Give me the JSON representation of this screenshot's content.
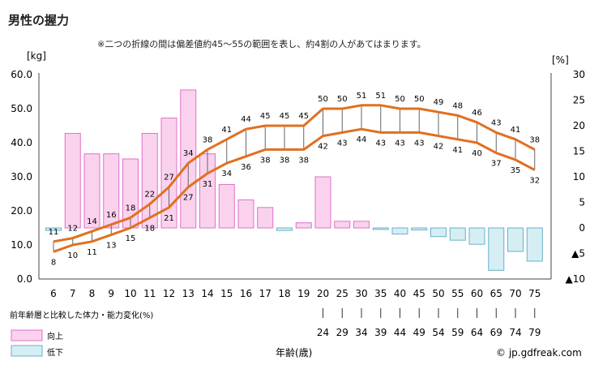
{
  "title": "男性の握力",
  "note": "※二つの折線の間は偏差値約45〜55の範囲を表し、約4割の人があてはまります。",
  "chart_data": {
    "type": "line",
    "title": "男性の握力",
    "left_axis_unit": "[kg]",
    "right_axis_unit": "[%]",
    "ylim": [
      0,
      60
    ],
    "yticks": [
      "0.0",
      "10.0",
      "20.0",
      "30.0",
      "40.0",
      "50.0",
      "60.0"
    ],
    "right_ylim": [
      -10,
      30
    ],
    "right_yticks": [
      "▲10",
      "▲5",
      "0",
      "5",
      "10",
      "15",
      "20",
      "25",
      "30"
    ],
    "categories": [
      "6",
      "7",
      "8",
      "9",
      "10",
      "11",
      "12",
      "13",
      "14",
      "15",
      "16",
      "17",
      "18",
      "19",
      "20",
      "25",
      "30",
      "35",
      "40",
      "45",
      "50",
      "55",
      "60",
      "65",
      "70",
      "75"
    ],
    "range_end_labels": [
      "24",
      "29",
      "34",
      "39",
      "44",
      "49",
      "54",
      "59",
      "64",
      "69",
      "74",
      "79"
    ],
    "series": [
      {
        "values": [
          11,
          12,
          14,
          16,
          18,
          22,
          27,
          34,
          38,
          41,
          44,
          45,
          45,
          45,
          50,
          50,
          51,
          51,
          50,
          50,
          49,
          48,
          46,
          43,
          41,
          38
        ]
      },
      {
        "values": [
          8,
          10,
          11,
          13,
          15,
          18,
          21,
          27,
          31,
          34,
          36,
          38,
          38,
          38,
          42,
          43,
          44,
          43,
          43,
          43,
          42,
          41,
          40,
          37,
          35,
          32
        ]
      }
    ],
    "bar_series": {
      "name_up": "向上",
      "name_down": "低下",
      "values": [
        -0.5,
        18.5,
        14.5,
        14.5,
        13.5,
        18.5,
        21.5,
        27,
        14.5,
        8.5,
        5.5,
        4,
        -0.5,
        1,
        10,
        1.3,
        1.3,
        -0.3,
        -1.2,
        -0.4,
        -1.7,
        -2.4,
        -3.2,
        -8.3,
        -4.6,
        -6.5
      ]
    },
    "bar_caption": "前年齢層と比較した体力・能力変化(%)",
    "xlabel": "年齢(歳)",
    "colors": {
      "line": "#e07020",
      "bar_up_fill": "#fad2ee",
      "bar_up_stroke": "#e070c8",
      "bar_down_fill": "#d5eef4",
      "bar_down_stroke": "#6ab0c8",
      "connector": "#666666"
    }
  },
  "footer": "© jp.gdfreak.com"
}
